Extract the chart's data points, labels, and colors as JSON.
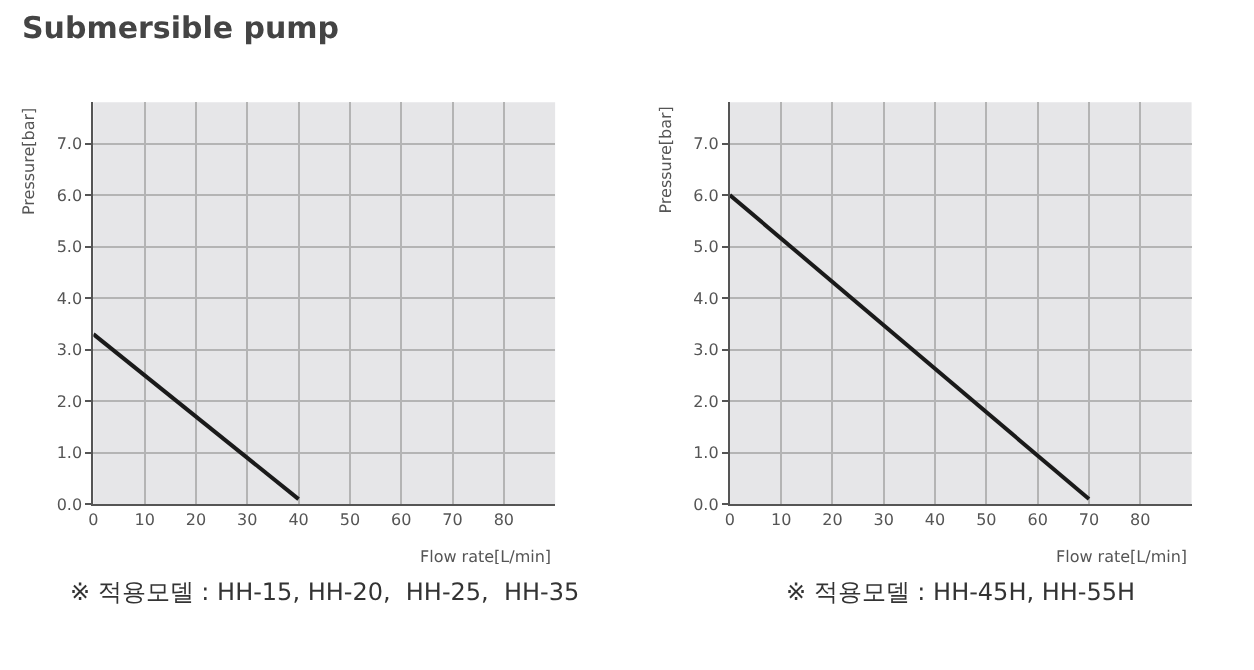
{
  "chart_data": [
    {
      "type": "line",
      "title": "Submersible pump",
      "xlabel": "Flow rate[L/min]",
      "ylabel": "Pressure[bar]",
      "x": [
        0,
        40
      ],
      "series": [
        {
          "color": "#1a1a1a",
          "values": [
            3.3,
            0.1
          ]
        }
      ],
      "xlim": [
        0,
        90
      ],
      "xticks": [
        0,
        10,
        20,
        30,
        40,
        50,
        60,
        70,
        80
      ],
      "ylim": [
        0,
        7.8
      ],
      "yticks": [
        {
          "value": 0,
          "label": "0.0"
        },
        {
          "value": 1,
          "label": "1.0"
        },
        {
          "value": 2,
          "label": "2.0"
        },
        {
          "value": 3,
          "label": "3.0"
        },
        {
          "value": 4,
          "label": "4.0"
        },
        {
          "value": 5,
          "label": "5.0"
        },
        {
          "value": 6,
          "label": "6.0"
        },
        {
          "value": 7,
          "label": "7.0"
        }
      ],
      "grid": true,
      "marker": "none",
      "line_style": "solid",
      "annotations": [
        "※ 적용모델 : HH-15, HH-20,  HH-25,  HH-35"
      ]
    },
    {
      "type": "line",
      "xlabel": "Flow rate[L/min]",
      "ylabel": "Pressure[bar]",
      "x": [
        0,
        70
      ],
      "series": [
        {
          "color": "#1a1a1a",
          "values": [
            6.0,
            0.1
          ]
        }
      ],
      "xlim": [
        0,
        90
      ],
      "xticks": [
        0,
        10,
        20,
        30,
        40,
        50,
        60,
        70,
        80
      ],
      "ylim": [
        0,
        7.8
      ],
      "yticks": [
        {
          "value": 0,
          "label": "0.0"
        },
        {
          "value": 1,
          "label": "1.0"
        },
        {
          "value": 2,
          "label": "2.0"
        },
        {
          "value": 3,
          "label": "3.0"
        },
        {
          "value": 4,
          "label": "4.0"
        },
        {
          "value": 5,
          "label": "5.0"
        },
        {
          "value": 6,
          "label": "6.0"
        },
        {
          "value": 7,
          "label": "7.0"
        }
      ],
      "grid": true,
      "marker": "none",
      "line_style": "solid",
      "annotations": [
        "※ 적용모델 : HH-45H, HH-55H"
      ]
    }
  ]
}
